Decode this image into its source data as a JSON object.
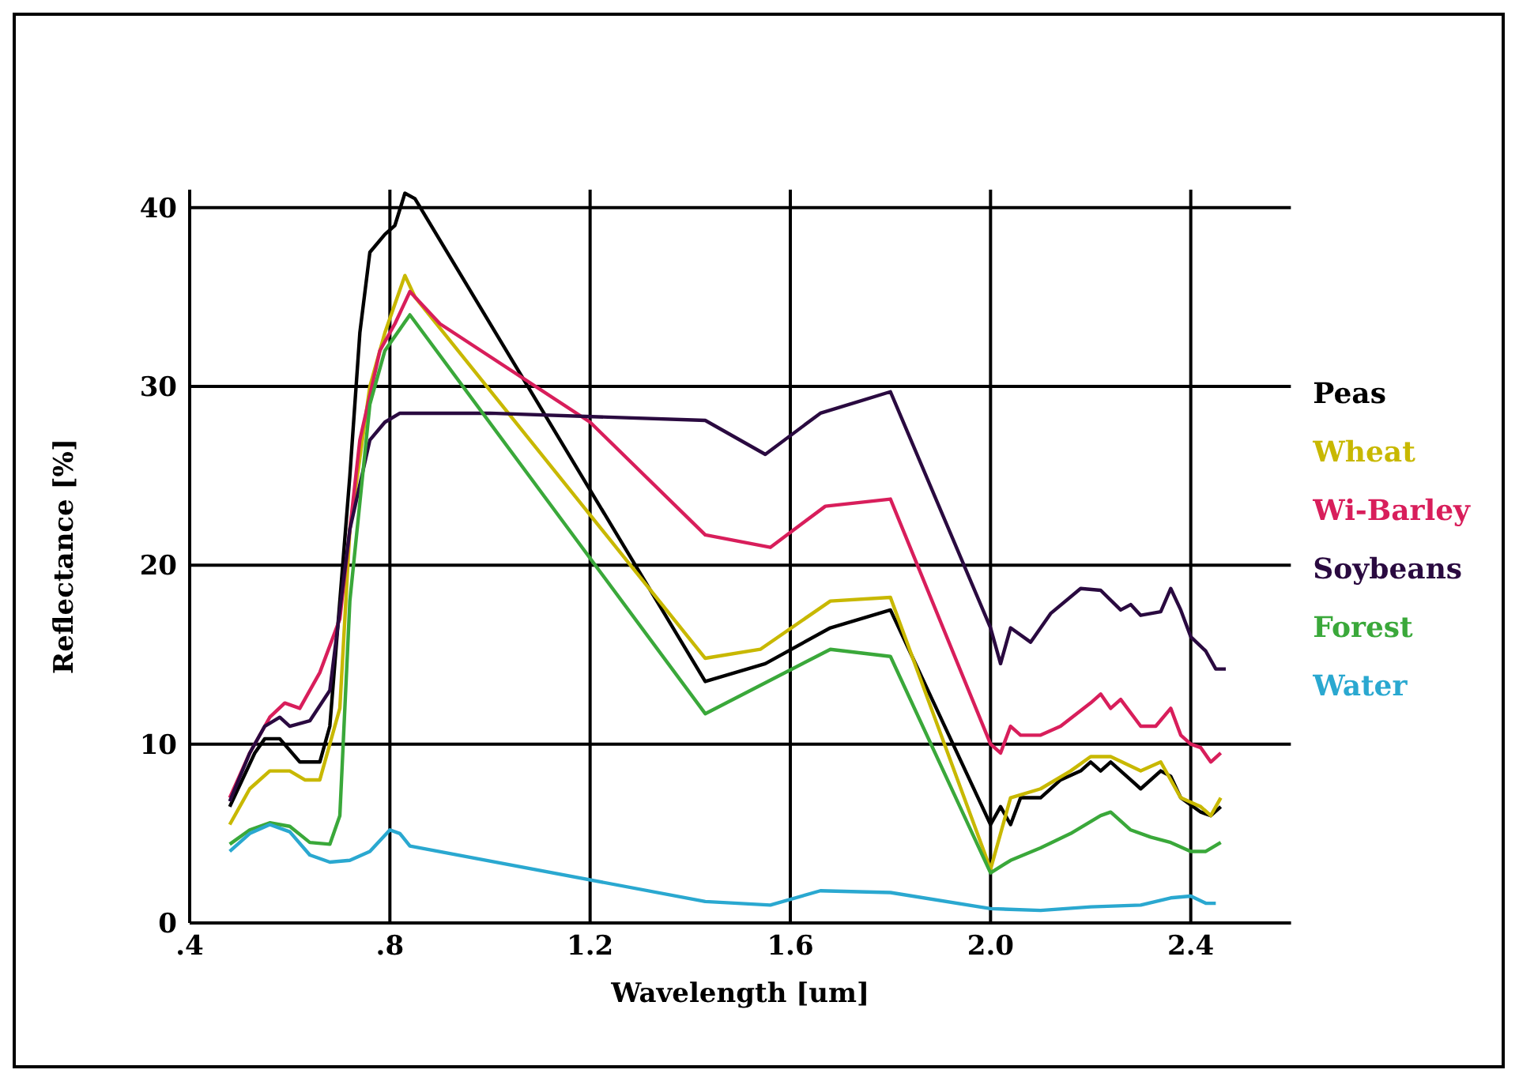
{
  "chart_data": {
    "type": "line",
    "xlabel": "Wavelength [um]",
    "ylabel": "Reflectance [%]",
    "xlim": [
      0.4,
      2.6
    ],
    "xticks": [
      {
        "value": 0.4,
        "label": ".4"
      },
      {
        "value": 0.8,
        "label": ".8"
      },
      1.2,
      1.6,
      {
        "value": 2.0,
        "label": "2.0"
      },
      2.4
    ],
    "ylim": [
      0,
      41
    ],
    "yticks": [
      0,
      10,
      20,
      30,
      40
    ],
    "grid": true,
    "legend": "right",
    "marker": "none",
    "line_style": "solid",
    "series": [
      {
        "name": "Peas",
        "color": "#000000",
        "x": [
          0.48,
          0.53,
          0.55,
          0.58,
          0.62,
          0.66,
          0.68,
          0.72,
          0.74,
          0.76,
          0.79,
          0.81,
          0.83,
          0.85,
          1.43,
          1.55,
          1.68,
          1.8,
          2.0,
          2.02,
          2.04,
          2.06,
          2.1,
          2.14,
          2.18,
          2.2,
          2.22,
          2.24,
          2.28,
          2.3,
          2.34,
          2.36,
          2.38,
          2.42,
          2.44,
          2.46
        ],
        "values": [
          6.5,
          9.5,
          10.3,
          10.3,
          9.0,
          9.0,
          11,
          25,
          33,
          37.5,
          38.5,
          39,
          40.8,
          40.5,
          13.5,
          14.5,
          16.5,
          17.5,
          5.5,
          6.5,
          5.5,
          7,
          7,
          8,
          8.5,
          9,
          8.5,
          9,
          8,
          7.5,
          8.5,
          8.2,
          7,
          6.2,
          6,
          6.5
        ]
      },
      {
        "name": "Wheat",
        "color": "#c8b800",
        "x": [
          0.48,
          0.52,
          0.56,
          0.6,
          0.63,
          0.66,
          0.7,
          0.72,
          0.76,
          0.79,
          0.83,
          0.85,
          1.43,
          1.54,
          1.68,
          1.8,
          2.0,
          2.04,
          2.1,
          2.16,
          2.2,
          2.24,
          2.3,
          2.34,
          2.38,
          2.42,
          2.44,
          2.46
        ],
        "values": [
          5.5,
          7.5,
          8.5,
          8.5,
          8,
          8,
          12,
          22,
          30,
          33,
          36.2,
          35,
          14.8,
          15.3,
          18,
          18.2,
          3,
          7,
          7.5,
          8.5,
          9.3,
          9.3,
          8.5,
          9,
          7,
          6.5,
          6,
          7
        ]
      },
      {
        "name": "Wi-Barley",
        "color": "#d81e5b",
        "x": [
          0.48,
          0.52,
          0.56,
          0.59,
          0.62,
          0.66,
          0.7,
          0.74,
          0.78,
          0.81,
          0.84,
          0.9,
          1.2,
          1.43,
          1.56,
          1.67,
          1.8,
          2.0,
          2.02,
          2.04,
          2.06,
          2.1,
          2.14,
          2.2,
          2.22,
          2.24,
          2.26,
          2.3,
          2.33,
          2.36,
          2.38,
          2.4,
          2.42,
          2.44,
          2.46
        ],
        "values": [
          7,
          9.5,
          11.5,
          12.3,
          12,
          14,
          17,
          27,
          32,
          33.5,
          35.3,
          33.5,
          28,
          21.7,
          21,
          23.3,
          23.7,
          10,
          9.5,
          11,
          10.5,
          10.5,
          11,
          12.3,
          12.8,
          12,
          12.5,
          11,
          11,
          12,
          10.5,
          10,
          9.8,
          9,
          9.5
        ]
      },
      {
        "name": "Soybeans",
        "color": "#2a0a40",
        "x": [
          0.48,
          0.52,
          0.55,
          0.58,
          0.6,
          0.64,
          0.68,
          0.72,
          0.76,
          0.79,
          0.82,
          1.0,
          1.43,
          1.55,
          1.66,
          1.8,
          2.0,
          2.02,
          2.04,
          2.08,
          2.12,
          2.18,
          2.22,
          2.26,
          2.28,
          2.3,
          2.34,
          2.36,
          2.38,
          2.4,
          2.43,
          2.45,
          2.47
        ],
        "values": [
          6.8,
          9.5,
          11,
          11.5,
          11,
          11.3,
          13,
          22,
          27,
          28,
          28.5,
          28.5,
          28.1,
          26.2,
          28.5,
          29.7,
          16.5,
          14.5,
          16.5,
          15.7,
          17.3,
          18.7,
          18.6,
          17.5,
          17.8,
          17.2,
          17.4,
          18.7,
          17.5,
          16,
          15.2,
          14.2,
          14.2
        ]
      },
      {
        "name": "Forest",
        "color": "#3aa83a",
        "x": [
          0.48,
          0.52,
          0.56,
          0.6,
          0.64,
          0.68,
          0.7,
          0.72,
          0.76,
          0.79,
          0.84,
          1.43,
          1.68,
          1.8,
          2.0,
          2.04,
          2.1,
          2.16,
          2.22,
          2.24,
          2.28,
          2.32,
          2.36,
          2.4,
          2.43,
          2.46
        ],
        "values": [
          4.4,
          5.2,
          5.6,
          5.4,
          4.5,
          4.4,
          6,
          18,
          29,
          32,
          34,
          11.7,
          15.3,
          14.9,
          2.8,
          3.5,
          4.2,
          5,
          6,
          6.2,
          5.2,
          4.8,
          4.5,
          4,
          4,
          4.5
        ]
      },
      {
        "name": "Water",
        "color": "#2aa8d0",
        "x": [
          0.48,
          0.52,
          0.56,
          0.6,
          0.64,
          0.68,
          0.72,
          0.76,
          0.8,
          0.82,
          0.84,
          1.43,
          1.56,
          1.66,
          1.8,
          2.0,
          2.1,
          2.2,
          2.3,
          2.36,
          2.4,
          2.43,
          2.45
        ],
        "values": [
          4.0,
          5.0,
          5.5,
          5.1,
          3.8,
          3.4,
          3.5,
          4.0,
          5.2,
          5,
          4.3,
          1.2,
          1.0,
          1.8,
          1.7,
          0.8,
          0.7,
          0.9,
          1.0,
          1.4,
          1.5,
          1.1,
          1.1
        ]
      }
    ]
  }
}
